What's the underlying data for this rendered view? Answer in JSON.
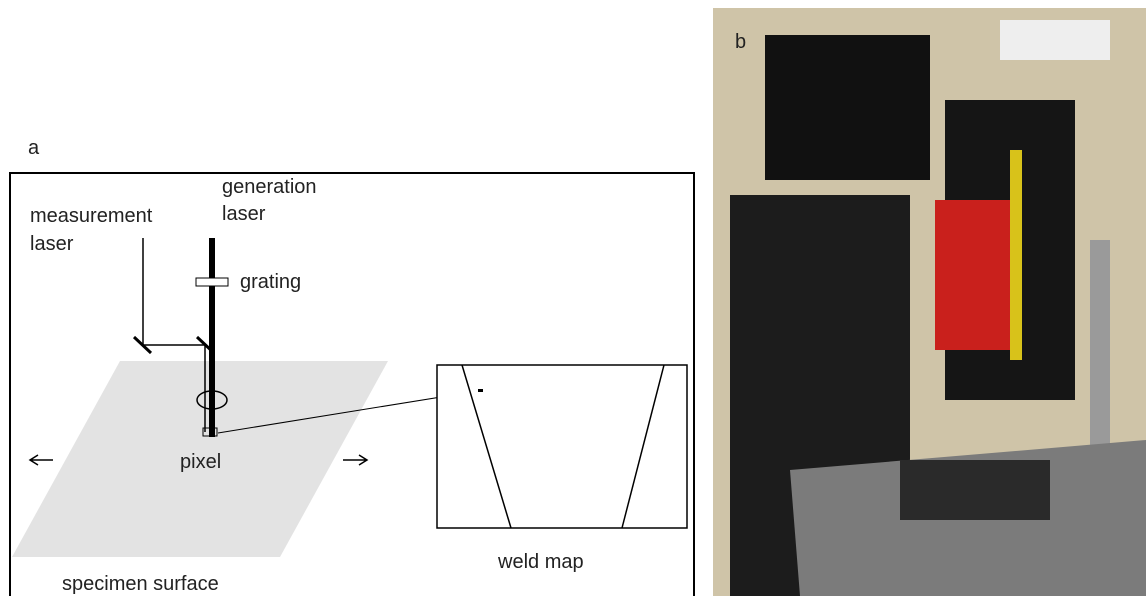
{
  "panel_a": {
    "label": "a",
    "generation_laser": [
      "generation",
      "laser"
    ],
    "measurement_laser": [
      "measurement",
      "laser"
    ],
    "grating": "grating",
    "pixel": "pixel",
    "weld_map": "weld map",
    "specimen_surface": "specimen surface"
  },
  "panel_b": {
    "label": "b"
  }
}
